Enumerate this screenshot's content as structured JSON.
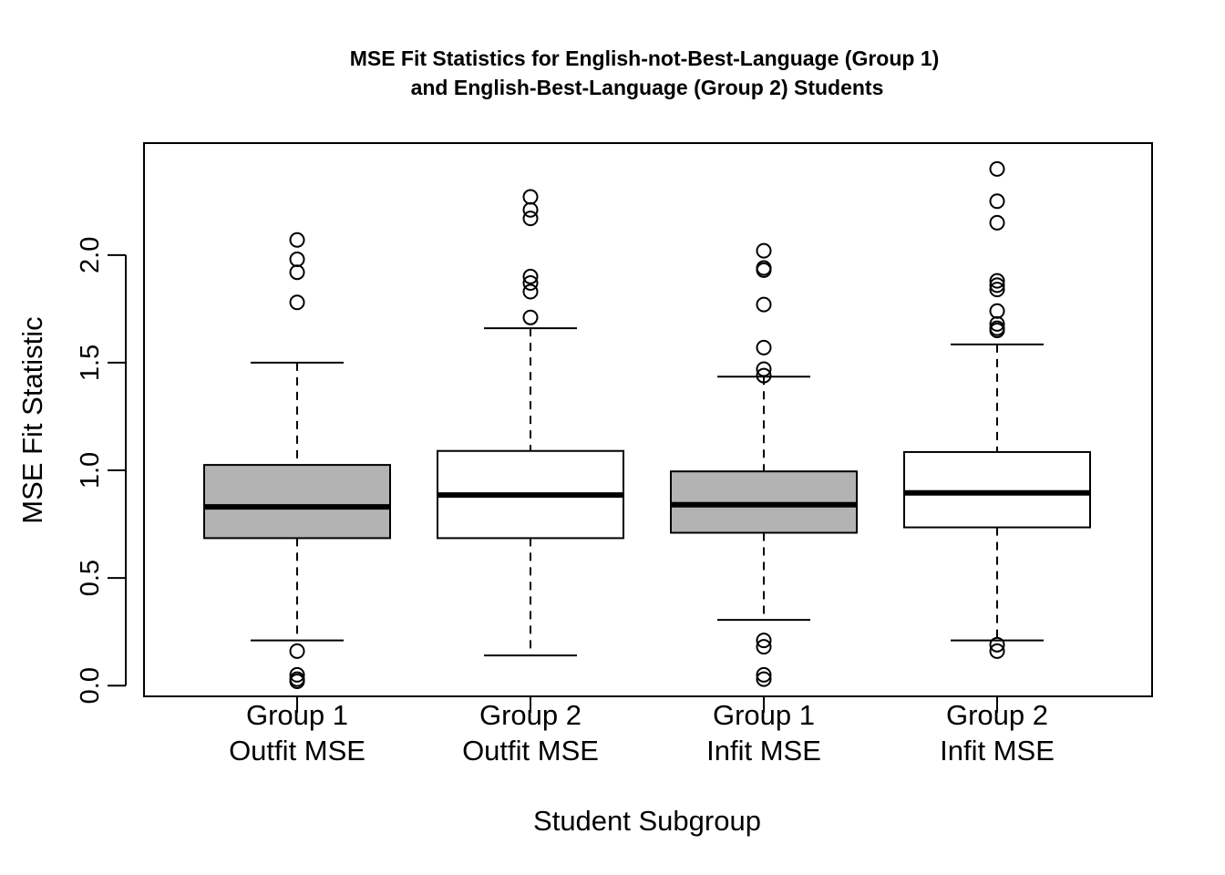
{
  "chart_data": {
    "type": "boxplot",
    "title_line1": "MSE Fit Statistics for English-not-Best-Language (Group 1)",
    "title_line2": "and English-Best-Language (Group 2) Students",
    "xlabel": "Student Subgroup",
    "ylabel": "MSE Fit Statistic",
    "ylim": [
      -0.05,
      2.52
    ],
    "yticks": [
      0.0,
      0.5,
      1.0,
      1.5,
      2.0
    ],
    "ytick_labels": [
      "0.0",
      "0.5",
      "1.0",
      "1.5",
      "2.0"
    ],
    "grid": false,
    "boxes": [
      {
        "label_line1": "Group 1",
        "label_line2": "Outfit MSE",
        "fill": "#b3b3b3",
        "whisker_low": 0.21,
        "q1": 0.685,
        "median": 0.83,
        "q3": 1.025,
        "whisker_high": 1.5,
        "outliers": [
          2.07,
          1.98,
          1.92,
          1.78,
          0.16,
          0.05,
          0.03,
          0.02
        ]
      },
      {
        "label_line1": "Group 2",
        "label_line2": "Outfit MSE",
        "fill": "#ffffff",
        "whisker_low": 0.14,
        "q1": 0.685,
        "median": 0.885,
        "q3": 1.09,
        "whisker_high": 1.66,
        "outliers": [
          2.27,
          2.21,
          2.17,
          1.9,
          1.87,
          1.83,
          1.71
        ]
      },
      {
        "label_line1": "Group 1",
        "label_line2": "Infit MSE",
        "fill": "#b3b3b3",
        "whisker_low": 0.305,
        "q1": 0.71,
        "median": 0.84,
        "q3": 0.995,
        "whisker_high": 1.435,
        "outliers": [
          2.02,
          1.94,
          1.93,
          1.77,
          1.57,
          1.47,
          1.44,
          0.21,
          0.18,
          0.05,
          0.03
        ]
      },
      {
        "label_line1": "Group 2",
        "label_line2": "Infit MSE",
        "fill": "#ffffff",
        "whisker_low": 0.21,
        "q1": 0.735,
        "median": 0.895,
        "q3": 1.085,
        "whisker_high": 1.585,
        "outliers": [
          2.4,
          2.25,
          2.15,
          1.88,
          1.86,
          1.84,
          1.74,
          1.68,
          1.66,
          1.65,
          0.19,
          0.16
        ]
      }
    ]
  }
}
